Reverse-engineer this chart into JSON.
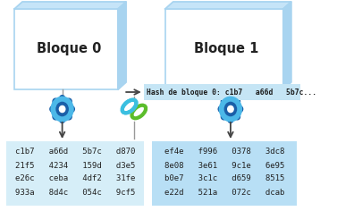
{
  "block0_label": "Bloque 0",
  "block1_label": "Bloque 1",
  "hash_label": "Hash de bloque 0: c1b7   a66d   5b7c...",
  "hash_box_color": "#c5e5f5",
  "hash_text_color": "#1a1a1a",
  "block_face_color": "#ffffff",
  "block_side_color": "#a8d4f0",
  "block_top_color": "#c5e4f8",
  "output_box0_color": "#d6eef8",
  "output_box1_color": "#b8dff5",
  "output0_lines": [
    "c1b7   a66d   5b7c   d870",
    "21f5   4234   159d   d3e5",
    "e26c   ceba   4df2   31fe",
    "933a   8d4c   054c   9cf5"
  ],
  "output1_lines": [
    "ef4e   f996   0378   3dc8",
    "8e08   3e61   9c1e   6e95",
    "b0e7   3c1c   d659   8515",
    "e22d   521a   072c   dcab"
  ],
  "gear_dark": "#1a5fa8",
  "gear_light": "#4cb8e8",
  "chain_cyan": "#3bbfe0",
  "chain_green": "#5bbd2b",
  "arrow_color": "#444444"
}
